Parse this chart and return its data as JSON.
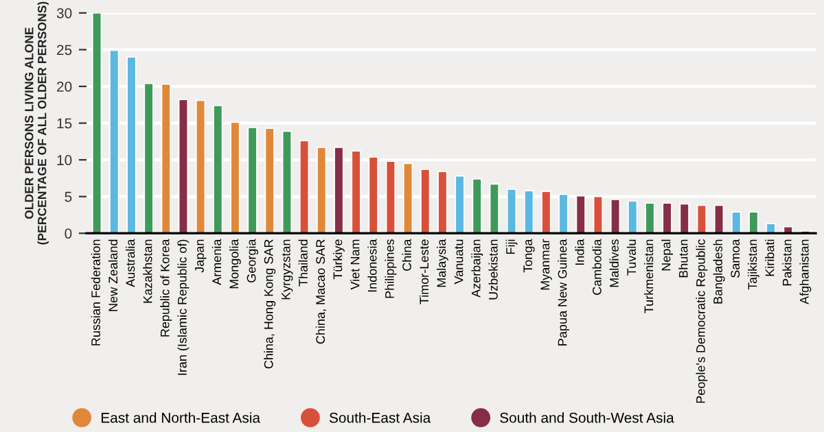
{
  "chart_data": {
    "type": "bar",
    "categories": [
      "Russian Federation",
      "New Zealand",
      "Australia",
      "Kazakhstan",
      "Republic of Korea",
      "Iran (Islamic Republic of)",
      "Japan",
      "Armenia",
      "Mongolia",
      "Georgia",
      "China, Hong Kong SAR",
      "Kyrgyzstan",
      "Thailand",
      "China, Macao SAR",
      "Türkiye",
      "Viet Nam",
      "Indonesia",
      "Philippines",
      "China",
      "Timor-Leste",
      "Malaysia",
      "Vanuatu",
      "Azerbaijan",
      "Uzbekistan",
      "Fiji",
      "Tonga",
      "Myanmar",
      "Papua New Guinea",
      "India",
      "Cambodia",
      "Maldives",
      "Tuvalu",
      "Turkmenistan",
      "Nepal",
      "Bhutan",
      "People's Democratic Republic",
      "Bangladesh",
      "Samoa",
      "Tajikistan",
      "Kiribati",
      "Pakistan",
      "Afghanistan"
    ],
    "series": [
      {
        "name": "East and North-East Asia",
        "color": "#e0883a",
        "values": [
          null,
          null,
          null,
          null,
          20.3,
          null,
          18.1,
          null,
          15.1,
          null,
          14.3,
          null,
          null,
          11.7,
          null,
          null,
          null,
          null,
          9.5,
          null,
          null,
          null,
          null,
          null,
          null,
          null,
          null,
          null,
          null,
          null,
          null,
          null,
          null,
          null,
          null,
          null,
          null,
          null,
          null,
          null,
          null,
          null
        ]
      },
      {
        "name": "South-East Asia",
        "color": "#d9503a",
        "values": [
          null,
          null,
          null,
          null,
          null,
          null,
          null,
          null,
          null,
          null,
          null,
          null,
          12.6,
          null,
          null,
          11.2,
          10.4,
          9.8,
          null,
          8.7,
          8.4,
          null,
          null,
          null,
          null,
          null,
          5.7,
          null,
          null,
          5.0,
          null,
          null,
          null,
          null,
          null,
          3.8,
          null,
          null,
          null,
          null,
          null,
          null
        ]
      },
      {
        "name": "South and South-West Asia",
        "color": "#862d47",
        "values": [
          null,
          null,
          null,
          null,
          null,
          18.2,
          null,
          null,
          null,
          null,
          null,
          null,
          null,
          null,
          11.7,
          null,
          null,
          null,
          null,
          null,
          null,
          null,
          null,
          null,
          null,
          null,
          null,
          null,
          5.1,
          null,
          4.6,
          null,
          null,
          4.1,
          4.0,
          null,
          3.8,
          null,
          null,
          null,
          0.9,
          0.3
        ]
      },
      {
        "color": "#3f9a5a",
        "values": [
          30,
          null,
          null,
          20.4,
          null,
          null,
          null,
          17.4,
          null,
          14.4,
          null,
          13.9,
          null,
          null,
          null,
          null,
          null,
          null,
          null,
          null,
          null,
          null,
          7.4,
          6.7,
          null,
          null,
          null,
          null,
          null,
          null,
          null,
          null,
          4.1,
          null,
          null,
          null,
          null,
          null,
          2.9,
          null,
          null,
          null
        ]
      },
      {
        "color": "#5bb8e0",
        "values": [
          null,
          24.9,
          24.0,
          null,
          null,
          null,
          null,
          null,
          null,
          null,
          null,
          null,
          null,
          null,
          null,
          null,
          null,
          null,
          null,
          null,
          null,
          7.8,
          null,
          null,
          6.0,
          5.8,
          null,
          5.3,
          null,
          null,
          null,
          4.4,
          null,
          null,
          null,
          null,
          null,
          2.9,
          null,
          1.3,
          null,
          null
        ]
      }
    ],
    "ylabel": "OLDER PERSONS LIVING ALONE\n(PERCENTAGE OF ALL OLDER PERSONS)",
    "ylim": [
      0,
      30
    ],
    "yticks": [
      0,
      5,
      10,
      15,
      20,
      25,
      30
    ],
    "grid": "y",
    "legend": "bottom"
  }
}
